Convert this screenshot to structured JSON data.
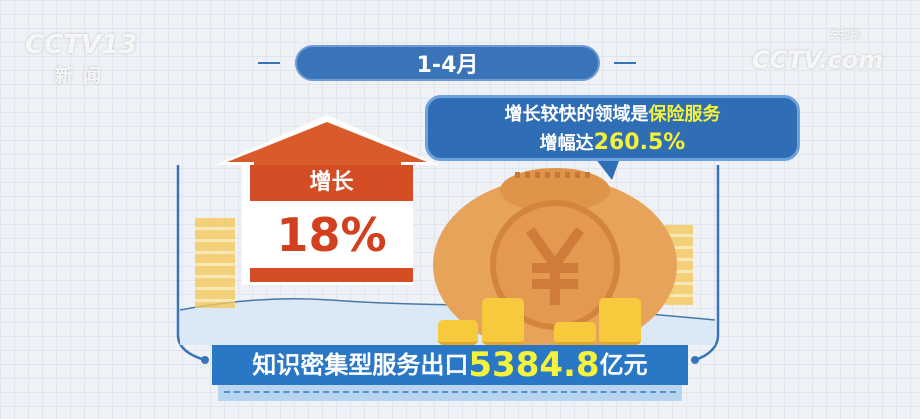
{
  "watermarks": {
    "channel_logo": "CCTV13",
    "channel_name": "新闻",
    "site_logo": "CCTV.com",
    "site_name": "央视网"
  },
  "period": "1-4月",
  "callout": {
    "line1_prefix": "增长较快的领域是",
    "line1_highlight": "保险服务",
    "line2_prefix": "增幅达",
    "line2_highlight": "260.5%"
  },
  "growth": {
    "label": "增长",
    "value": "18%"
  },
  "banner": {
    "prefix": "知识密集型服务出口",
    "value": "5384.8",
    "unit": "亿元"
  },
  "colors": {
    "blue": "#2a78c5",
    "orange": "#d54d25",
    "highlight": "#f4f23a",
    "bag": "#e7a35a"
  }
}
